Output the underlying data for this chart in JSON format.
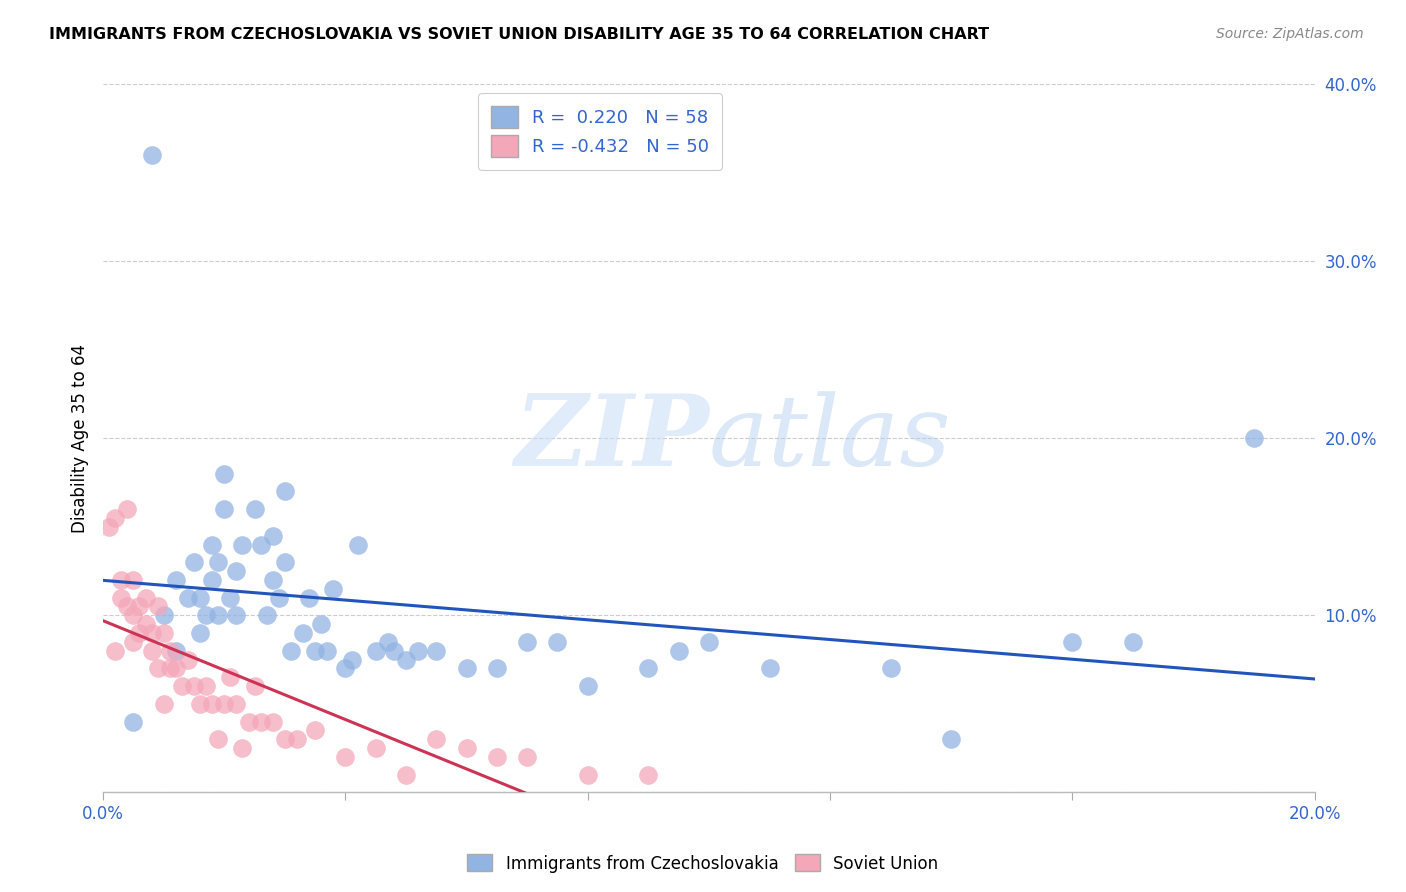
{
  "title": "IMMIGRANTS FROM CZECHOSLOVAKIA VS SOVIET UNION DISABILITY AGE 35 TO 64 CORRELATION CHART",
  "source": "Source: ZipAtlas.com",
  "ylabel": "Disability Age 35 to 64",
  "xlim": [
    0.0,
    0.2
  ],
  "ylim": [
    0.0,
    0.4
  ],
  "xticks": [
    0.0,
    0.04,
    0.08,
    0.12,
    0.16,
    0.2
  ],
  "yticks": [
    0.0,
    0.1,
    0.2,
    0.3,
    0.4
  ],
  "blue_R": 0.22,
  "blue_N": 58,
  "pink_R": -0.432,
  "pink_N": 50,
  "blue_color": "#92b4e3",
  "pink_color": "#f4a7b9",
  "blue_line_color": "#2255bb",
  "pink_line_color": "#cc3355",
  "watermark_zip": "ZIP",
  "watermark_atlas": "atlas",
  "legend_label_blue": "Immigrants from Czechoslovakia",
  "legend_label_pink": "Soviet Union",
  "blue_x": [
    0.005,
    0.008,
    0.01,
    0.012,
    0.012,
    0.014,
    0.015,
    0.016,
    0.016,
    0.017,
    0.018,
    0.018,
    0.019,
    0.019,
    0.02,
    0.02,
    0.021,
    0.022,
    0.022,
    0.023,
    0.025,
    0.026,
    0.027,
    0.028,
    0.028,
    0.029,
    0.03,
    0.03,
    0.031,
    0.033,
    0.034,
    0.035,
    0.036,
    0.037,
    0.038,
    0.04,
    0.041,
    0.042,
    0.045,
    0.047,
    0.048,
    0.05,
    0.052,
    0.055,
    0.06,
    0.065,
    0.07,
    0.075,
    0.08,
    0.09,
    0.095,
    0.1,
    0.11,
    0.13,
    0.14,
    0.16,
    0.17,
    0.19
  ],
  "blue_y": [
    0.04,
    0.36,
    0.1,
    0.08,
    0.12,
    0.11,
    0.13,
    0.09,
    0.11,
    0.1,
    0.12,
    0.14,
    0.1,
    0.13,
    0.16,
    0.18,
    0.11,
    0.1,
    0.125,
    0.14,
    0.16,
    0.14,
    0.1,
    0.145,
    0.12,
    0.11,
    0.17,
    0.13,
    0.08,
    0.09,
    0.11,
    0.08,
    0.095,
    0.08,
    0.115,
    0.07,
    0.075,
    0.14,
    0.08,
    0.085,
    0.08,
    0.075,
    0.08,
    0.08,
    0.07,
    0.07,
    0.085,
    0.085,
    0.06,
    0.07,
    0.08,
    0.085,
    0.07,
    0.07,
    0.03,
    0.085,
    0.085,
    0.2
  ],
  "pink_x": [
    0.001,
    0.002,
    0.002,
    0.003,
    0.003,
    0.004,
    0.004,
    0.005,
    0.005,
    0.005,
    0.006,
    0.006,
    0.007,
    0.007,
    0.008,
    0.008,
    0.009,
    0.009,
    0.01,
    0.01,
    0.011,
    0.011,
    0.012,
    0.013,
    0.014,
    0.015,
    0.016,
    0.017,
    0.018,
    0.019,
    0.02,
    0.021,
    0.022,
    0.023,
    0.024,
    0.025,
    0.026,
    0.028,
    0.03,
    0.032,
    0.035,
    0.04,
    0.045,
    0.05,
    0.055,
    0.06,
    0.065,
    0.07,
    0.08,
    0.09
  ],
  "pink_y": [
    0.15,
    0.155,
    0.08,
    0.12,
    0.11,
    0.16,
    0.105,
    0.1,
    0.085,
    0.12,
    0.105,
    0.09,
    0.11,
    0.095,
    0.09,
    0.08,
    0.07,
    0.105,
    0.09,
    0.05,
    0.07,
    0.08,
    0.07,
    0.06,
    0.075,
    0.06,
    0.05,
    0.06,
    0.05,
    0.03,
    0.05,
    0.065,
    0.05,
    0.025,
    0.04,
    0.06,
    0.04,
    0.04,
    0.03,
    0.03,
    0.035,
    0.02,
    0.025,
    0.01,
    0.03,
    0.025,
    0.02,
    0.02,
    0.01,
    0.01
  ]
}
